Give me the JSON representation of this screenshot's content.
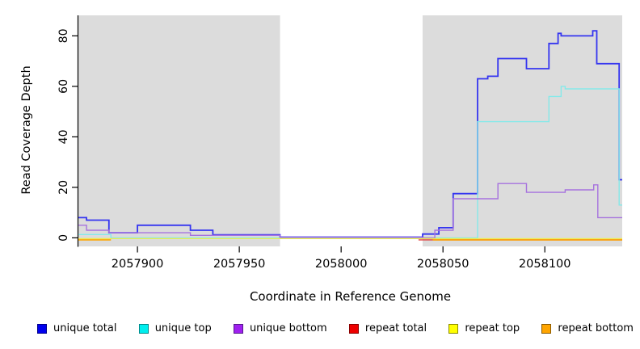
{
  "chart_data": {
    "type": "line",
    "line_style": "step",
    "title": "",
    "xlabel": "Coordinate in Reference Genome",
    "ylabel": "Read Coverage Depth",
    "xlim": [
      2057871,
      2058138
    ],
    "ylim": [
      0,
      86
    ],
    "x_ticks": [
      "2057900",
      "2057950",
      "2058000",
      "2058050",
      "2058100"
    ],
    "x_tick_values": [
      2057900,
      2057950,
      2058000,
      2058050,
      2058100
    ],
    "y_ticks": [
      "0",
      "20",
      "40",
      "60",
      "80"
    ],
    "y_tick_values": [
      0,
      20,
      40,
      60,
      80
    ],
    "grid": false,
    "shaded_regions": [
      {
        "x0": 2057871,
        "x1": 2057970,
        "color": "#dcdcdc"
      },
      {
        "x0": 2058040,
        "x1": 2058138,
        "color": "#dcdcdc"
      }
    ],
    "series": [
      {
        "name": "unique total",
        "color": "#3535f0",
        "width": 1.8,
        "dy": 0,
        "points": [
          [
            2057871,
            8
          ],
          [
            2057875,
            7
          ],
          [
            2057886,
            2
          ],
          [
            2057900,
            5
          ],
          [
            2057926,
            3
          ],
          [
            2057937,
            1.2
          ],
          [
            2057970,
            0.3
          ],
          [
            2058040,
            1.5
          ],
          [
            2058048,
            4
          ],
          [
            2058055,
            17.5
          ],
          [
            2058067,
            63
          ],
          [
            2058072,
            64
          ],
          [
            2058077,
            71
          ],
          [
            2058091,
            67
          ],
          [
            2058102,
            77
          ],
          [
            2058106.5,
            81
          ],
          [
            2058108,
            80
          ],
          [
            2058123.5,
            82
          ],
          [
            2058125.5,
            69
          ],
          [
            2058136.5,
            23
          ]
        ]
      },
      {
        "name": "unique top",
        "color": "#85e9e9",
        "width": 1.4,
        "dy": 0,
        "points": [
          [
            2057871,
            1.3
          ],
          [
            2057887,
            0
          ],
          [
            2058067,
            46
          ],
          [
            2058102,
            56
          ],
          [
            2058108,
            60
          ],
          [
            2058110,
            59
          ],
          [
            2058136.5,
            13
          ]
        ]
      },
      {
        "name": "unique bottom",
        "color": "#a672de",
        "width": 1.4,
        "dy": 0,
        "points": [
          [
            2057871,
            5
          ],
          [
            2057875,
            3
          ],
          [
            2057886,
            2
          ],
          [
            2057926,
            1
          ],
          [
            2057970,
            0.2
          ],
          [
            2058040,
            0
          ],
          [
            2058046,
            3
          ],
          [
            2058055,
            15.5
          ],
          [
            2058077,
            21.5
          ],
          [
            2058091,
            18
          ],
          [
            2058110,
            19
          ],
          [
            2058124,
            21
          ],
          [
            2058126,
            8
          ]
        ]
      },
      {
        "name": "repeat total",
        "color": "#e04040",
        "width": 1.4,
        "dy": 2.5,
        "points": [
          [
            2057871,
            null
          ],
          [
            2058038,
            0
          ]
        ]
      },
      {
        "name": "repeat top",
        "color": "#eded4f",
        "width": 1.2,
        "dy": 1.0,
        "points": [
          [
            2057871,
            0
          ]
        ]
      },
      {
        "name": "repeat bottom",
        "color": "#ffa500",
        "width": 1.6,
        "dy": 2.5,
        "points": [
          [
            2057871,
            0
          ],
          [
            2057887,
            null
          ],
          [
            2058045,
            0
          ]
        ]
      }
    ],
    "legend": {
      "position": "bottom",
      "items": [
        {
          "label": "unique total",
          "fill": "#0000ee",
          "border": "#00008b"
        },
        {
          "label": "unique top",
          "fill": "#00eeee",
          "border": "#008b8b"
        },
        {
          "label": "unique bottom",
          "fill": "#a020f0",
          "border": "#551a8b"
        },
        {
          "label": "repeat total",
          "fill": "#ee0000",
          "border": "#8b0000"
        },
        {
          "label": "repeat top",
          "fill": "#ffff00",
          "border": "#8b8b00"
        },
        {
          "label": "repeat bottom",
          "fill": "#ffa500",
          "border": "#8b5a00"
        }
      ]
    }
  }
}
